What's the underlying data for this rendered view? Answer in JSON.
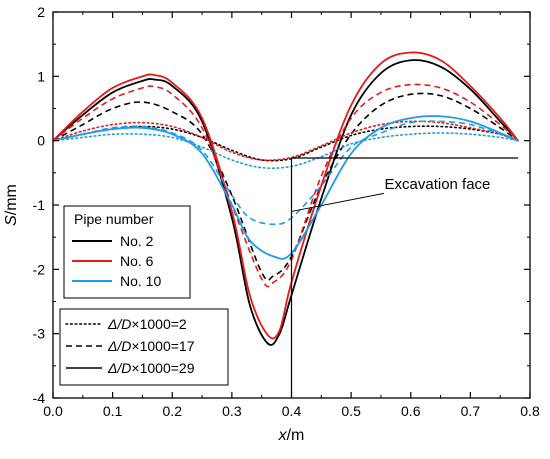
{
  "chart_data": {
    "type": "line",
    "xlabel": "x/m",
    "ylabel": "S/mm",
    "xlim": [
      0,
      0.8
    ],
    "ylim": [
      -4,
      2
    ],
    "x_ticks": [
      "0.0",
      "0.1",
      "0.2",
      "0.3",
      "0.4",
      "0.5",
      "0.6",
      "0.7",
      "0.8"
    ],
    "y_ticks": [
      "2",
      "1",
      "0",
      "-1",
      "-2",
      "-3",
      "-4"
    ],
    "grid": false,
    "legend_pipe": {
      "title": "Pipe number",
      "entries": [
        {
          "label": "No. 2",
          "color": "#000000"
        },
        {
          "label": "No. 6",
          "color": "#e8191a"
        },
        {
          "label": "No. 10",
          "color": "#1e9be9"
        }
      ]
    },
    "legend_ratio": {
      "entries": [
        {
          "prefix": "Δ/D",
          "suffix": "×1000=2",
          "style": "dotted"
        },
        {
          "prefix": "Δ/D",
          "suffix": "×1000=17",
          "style": "dashed"
        },
        {
          "prefix": "Δ/D",
          "suffix": "×1000=29",
          "style": "solid"
        }
      ]
    },
    "annotation": {
      "text": "Excavation face",
      "x": 0.4
    },
    "series": [
      {
        "pipe": "No. 2",
        "ratio": "2",
        "color": "#000000",
        "style": "dotted",
        "x": [
          0,
          0.05,
          0.1,
          0.15,
          0.2,
          0.25,
          0.3,
          0.35,
          0.4,
          0.45,
          0.5,
          0.55,
          0.6,
          0.65,
          0.7,
          0.75,
          0.78
        ],
        "y": [
          0,
          0.1,
          0.18,
          0.22,
          0.18,
          0.05,
          -0.15,
          -0.3,
          -0.28,
          -0.1,
          0.08,
          0.18,
          0.22,
          0.22,
          0.18,
          0.1,
          0
        ]
      },
      {
        "pipe": "No. 2",
        "ratio": "17",
        "color": "#000000",
        "style": "dashed",
        "x": [
          0,
          0.05,
          0.1,
          0.15,
          0.2,
          0.25,
          0.3,
          0.35,
          0.37,
          0.4,
          0.45,
          0.5,
          0.55,
          0.6,
          0.65,
          0.7,
          0.75,
          0.78
        ],
        "y": [
          0,
          0.25,
          0.5,
          0.6,
          0.45,
          0.1,
          -0.85,
          -2.05,
          -2.1,
          -1.8,
          -0.7,
          0.1,
          0.55,
          0.72,
          0.7,
          0.5,
          0.2,
          0
        ]
      },
      {
        "pipe": "No. 2",
        "ratio": "29",
        "color": "#000000",
        "style": "solid",
        "x": [
          0,
          0.05,
          0.1,
          0.15,
          0.17,
          0.2,
          0.25,
          0.3,
          0.33,
          0.36,
          0.38,
          0.4,
          0.45,
          0.5,
          0.55,
          0.6,
          0.65,
          0.7,
          0.75,
          0.78
        ],
        "y": [
          0,
          0.4,
          0.75,
          0.93,
          0.95,
          0.85,
          0.3,
          -1.2,
          -2.55,
          -3.15,
          -3.0,
          -2.4,
          -0.9,
          0.4,
          1.05,
          1.25,
          1.15,
          0.8,
          0.3,
          0
        ]
      },
      {
        "pipe": "No. 6",
        "ratio": "2",
        "color": "#e8191a",
        "style": "dotted",
        "x": [
          0,
          0.05,
          0.1,
          0.15,
          0.2,
          0.25,
          0.3,
          0.35,
          0.4,
          0.45,
          0.5,
          0.55,
          0.6,
          0.65,
          0.7,
          0.75,
          0.78
        ],
        "y": [
          0,
          0.15,
          0.25,
          0.28,
          0.22,
          0.05,
          -0.18,
          -0.3,
          -0.26,
          -0.08,
          0.12,
          0.25,
          0.3,
          0.28,
          0.2,
          0.1,
          0
        ]
      },
      {
        "pipe": "No. 6",
        "ratio": "17",
        "color": "#e8191a",
        "style": "dashed",
        "x": [
          0,
          0.05,
          0.1,
          0.15,
          0.17,
          0.2,
          0.25,
          0.3,
          0.35,
          0.37,
          0.4,
          0.45,
          0.5,
          0.55,
          0.6,
          0.65,
          0.7,
          0.75,
          0.78
        ],
        "y": [
          0,
          0.35,
          0.65,
          0.82,
          0.84,
          0.72,
          0.2,
          -1.0,
          -2.15,
          -2.2,
          -1.85,
          -0.55,
          0.35,
          0.75,
          0.87,
          0.82,
          0.6,
          0.25,
          0
        ]
      },
      {
        "pipe": "No. 6",
        "ratio": "29",
        "color": "#e8191a",
        "style": "solid",
        "x": [
          0,
          0.05,
          0.1,
          0.15,
          0.17,
          0.2,
          0.25,
          0.3,
          0.33,
          0.36,
          0.38,
          0.4,
          0.45,
          0.5,
          0.55,
          0.6,
          0.65,
          0.7,
          0.75,
          0.78
        ],
        "y": [
          0,
          0.45,
          0.82,
          1.0,
          1.02,
          0.9,
          0.35,
          -1.1,
          -2.4,
          -3.02,
          -2.95,
          -2.2,
          -0.7,
          0.55,
          1.2,
          1.37,
          1.25,
          0.85,
          0.35,
          0
        ]
      },
      {
        "pipe": "No. 10",
        "ratio": "2",
        "color": "#1e9be9",
        "style": "dotted",
        "x": [
          0,
          0.05,
          0.1,
          0.15,
          0.2,
          0.25,
          0.3,
          0.35,
          0.4,
          0.45,
          0.5,
          0.55,
          0.6,
          0.65,
          0.7,
          0.75,
          0.78
        ],
        "y": [
          0,
          0.05,
          0.1,
          0.1,
          0.05,
          -0.1,
          -0.3,
          -0.42,
          -0.4,
          -0.25,
          -0.05,
          0.05,
          0.1,
          0.12,
          0.1,
          0.05,
          0
        ]
      },
      {
        "pipe": "No. 10",
        "ratio": "17",
        "color": "#1e9be9",
        "style": "dashed",
        "x": [
          0,
          0.05,
          0.1,
          0.15,
          0.2,
          0.25,
          0.3,
          0.33,
          0.37,
          0.4,
          0.45,
          0.5,
          0.55,
          0.6,
          0.65,
          0.7,
          0.75,
          0.78
        ],
        "y": [
          0,
          0.1,
          0.2,
          0.22,
          0.12,
          -0.15,
          -0.85,
          -1.2,
          -1.3,
          -1.2,
          -0.7,
          -0.1,
          0.12,
          0.28,
          0.3,
          0.25,
          0.1,
          0
        ]
      },
      {
        "pipe": "No. 10",
        "ratio": "29",
        "color": "#1e9be9",
        "style": "solid",
        "x": [
          0,
          0.05,
          0.1,
          0.15,
          0.2,
          0.25,
          0.3,
          0.33,
          0.37,
          0.4,
          0.45,
          0.5,
          0.55,
          0.6,
          0.65,
          0.7,
          0.75,
          0.78
        ],
        "y": [
          0,
          0.1,
          0.18,
          0.2,
          0.1,
          -0.2,
          -1.0,
          -1.55,
          -1.8,
          -1.75,
          -1.0,
          -0.2,
          0.2,
          0.35,
          0.38,
          0.3,
          0.12,
          0
        ]
      }
    ]
  }
}
